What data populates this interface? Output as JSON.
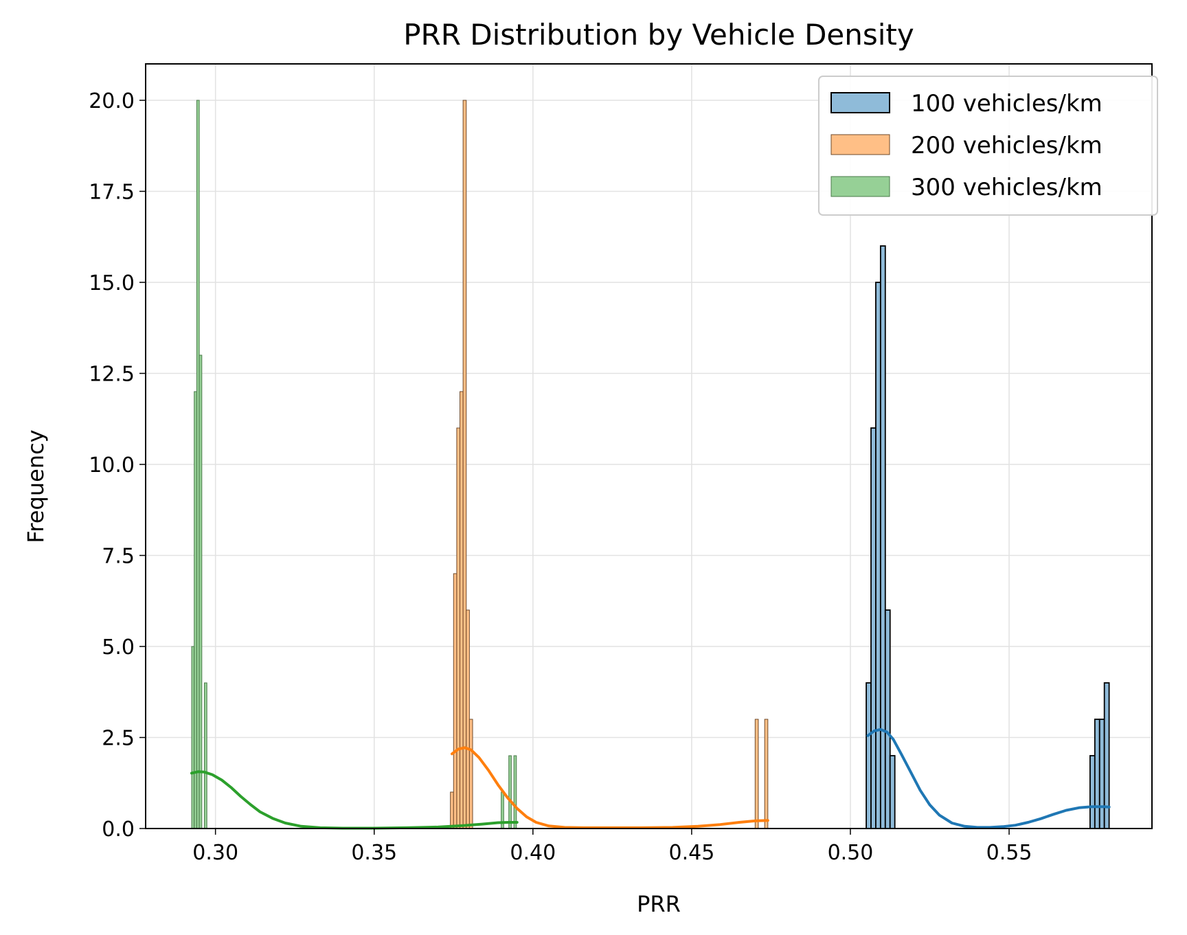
{
  "chart_data": {
    "type": "histogram",
    "title": "PRR Distribution by Vehicle Density",
    "xlabel": "PRR",
    "ylabel": "Frequency",
    "xlim": [
      0.278,
      0.595
    ],
    "ylim": [
      0,
      21
    ],
    "xticks": [
      0.3,
      0.35,
      0.4,
      0.45,
      0.5,
      0.55
    ],
    "xtick_labels": [
      "0.30",
      "0.35",
      "0.40",
      "0.45",
      "0.50",
      "0.55"
    ],
    "yticks": [
      0,
      2.5,
      5,
      7.5,
      10,
      12.5,
      15,
      17.5,
      20
    ],
    "ytick_labels": [
      "0.0",
      "2.5",
      "5.0",
      "7.5",
      "10.0",
      "12.5",
      "15.0",
      "17.5",
      "20.0"
    ],
    "grid": true,
    "legend_position": "top-right",
    "series": [
      {
        "name": "100 vehicles/km",
        "color": "#1f77b4",
        "fill": "#8fbbd9",
        "edge": "#000000",
        "bins": [
          {
            "x0": 0.505,
            "x1": 0.5065,
            "count": 4
          },
          {
            "x0": 0.5065,
            "x1": 0.508,
            "count": 11
          },
          {
            "x0": 0.508,
            "x1": 0.5095,
            "count": 15
          },
          {
            "x0": 0.5095,
            "x1": 0.511,
            "count": 16
          },
          {
            "x0": 0.511,
            "x1": 0.5125,
            "count": 6
          },
          {
            "x0": 0.5125,
            "x1": 0.514,
            "count": 2
          },
          {
            "x0": 0.5755,
            "x1": 0.577,
            "count": 2
          },
          {
            "x0": 0.577,
            "x1": 0.5785,
            "count": 3
          },
          {
            "x0": 0.5785,
            "x1": 0.58,
            "count": 3
          },
          {
            "x0": 0.58,
            "x1": 0.5815,
            "count": 4
          }
        ],
        "kde": {
          "x": [
            0.5055,
            0.5075,
            0.5095,
            0.5115,
            0.5135,
            0.516,
            0.519,
            0.522,
            0.525,
            0.528,
            0.532,
            0.536,
            0.54,
            0.544,
            0.548,
            0.552,
            0.556,
            0.56,
            0.564,
            0.568,
            0.572,
            0.576,
            0.58,
            0.5815
          ],
          "y": [
            2.55,
            2.68,
            2.72,
            2.65,
            2.45,
            2.05,
            1.55,
            1.05,
            0.65,
            0.37,
            0.15,
            0.06,
            0.03,
            0.03,
            0.05,
            0.09,
            0.17,
            0.27,
            0.39,
            0.5,
            0.57,
            0.6,
            0.6,
            0.59
          ]
        }
      },
      {
        "name": "200 vehicles/km",
        "color": "#ff7f0e",
        "fill": "#ffbf86",
        "edge": "#6e4a2a",
        "bins": [
          {
            "x0": 0.374,
            "x1": 0.375,
            "count": 1
          },
          {
            "x0": 0.375,
            "x1": 0.376,
            "count": 7
          },
          {
            "x0": 0.376,
            "x1": 0.377,
            "count": 11
          },
          {
            "x0": 0.377,
            "x1": 0.378,
            "count": 12
          },
          {
            "x0": 0.378,
            "x1": 0.379,
            "count": 20
          },
          {
            "x0": 0.379,
            "x1": 0.38,
            "count": 6
          },
          {
            "x0": 0.38,
            "x1": 0.381,
            "count": 3
          },
          {
            "x0": 0.47,
            "x1": 0.471,
            "count": 3
          },
          {
            "x0": 0.473,
            "x1": 0.474,
            "count": 3
          }
        ],
        "kde": {
          "x": [
            0.3745,
            0.3765,
            0.3785,
            0.3805,
            0.383,
            0.386,
            0.389,
            0.392,
            0.395,
            0.398,
            0.401,
            0.405,
            0.41,
            0.416,
            0.424,
            0.434,
            0.444,
            0.452,
            0.459,
            0.465,
            0.47,
            0.474
          ],
          "y": [
            2.05,
            2.18,
            2.22,
            2.16,
            1.95,
            1.6,
            1.2,
            0.85,
            0.55,
            0.32,
            0.17,
            0.07,
            0.03,
            0.02,
            0.02,
            0.02,
            0.03,
            0.06,
            0.11,
            0.17,
            0.21,
            0.22
          ]
        }
      },
      {
        "name": "300 vehicles/km",
        "color": "#2ca02c",
        "fill": "#96d096",
        "edge": "#4a7a4a",
        "bins": [
          {
            "x0": 0.2925,
            "x1": 0.2933,
            "count": 5
          },
          {
            "x0": 0.2933,
            "x1": 0.2941,
            "count": 12
          },
          {
            "x0": 0.2941,
            "x1": 0.2949,
            "count": 20
          },
          {
            "x0": 0.2949,
            "x1": 0.2957,
            "count": 13
          },
          {
            "x0": 0.2965,
            "x1": 0.2973,
            "count": 4
          },
          {
            "x0": 0.39,
            "x1": 0.3908,
            "count": 1
          },
          {
            "x0": 0.3924,
            "x1": 0.3932,
            "count": 2
          },
          {
            "x0": 0.394,
            "x1": 0.3948,
            "count": 2
          }
        ],
        "kde": {
          "x": [
            0.2925,
            0.2945,
            0.2965,
            0.299,
            0.302,
            0.305,
            0.308,
            0.311,
            0.314,
            0.318,
            0.322,
            0.327,
            0.333,
            0.34,
            0.35,
            0.36,
            0.37,
            0.378,
            0.384,
            0.389,
            0.3925,
            0.395
          ],
          "y": [
            1.52,
            1.56,
            1.55,
            1.48,
            1.33,
            1.12,
            0.88,
            0.66,
            0.46,
            0.28,
            0.15,
            0.06,
            0.02,
            0.01,
            0.01,
            0.02,
            0.04,
            0.08,
            0.12,
            0.16,
            0.17,
            0.17
          ]
        }
      }
    ]
  }
}
